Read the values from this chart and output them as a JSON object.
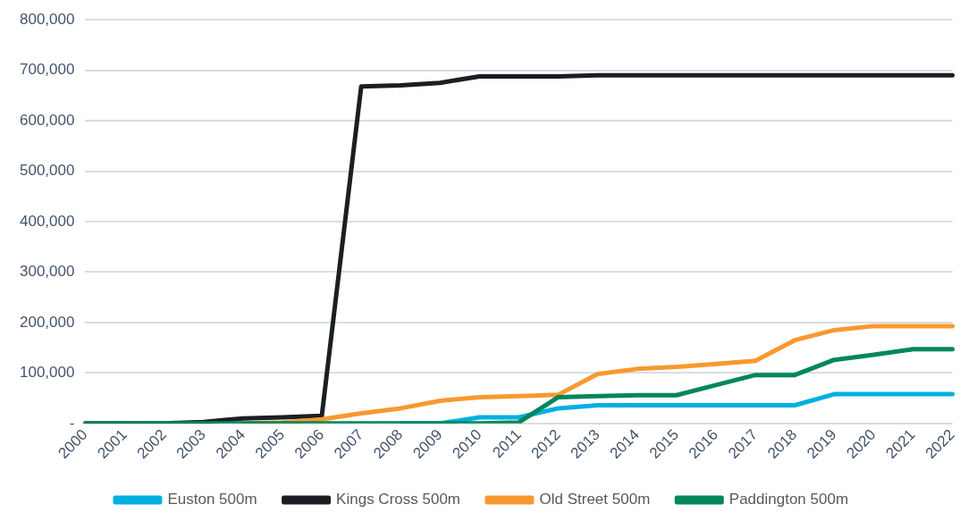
{
  "chart_data": {
    "type": "line",
    "categories": [
      "2000",
      "2001",
      "2002",
      "2003",
      "2004",
      "2005",
      "2006",
      "2007",
      "2008",
      "2009",
      "2010",
      "2011",
      "2012",
      "2013",
      "2014",
      "2015",
      "2016",
      "2017",
      "2018",
      "2019",
      "2020",
      "2021",
      "2022"
    ],
    "series": [
      {
        "name": "Euston 500m",
        "color": "#00b0e0",
        "values": [
          null,
          null,
          null,
          null,
          null,
          null,
          null,
          null,
          0,
          0,
          12000,
          12000,
          30000,
          36000,
          36000,
          36000,
          36000,
          36000,
          36000,
          58000,
          58000,
          58000,
          58000
        ]
      },
      {
        "name": "Kings Cross 500m",
        "color": "#1b1f24",
        "values": [
          0,
          0,
          0,
          3000,
          10000,
          12000,
          15000,
          668000,
          670000,
          675000,
          688000,
          688000,
          688000,
          690000,
          690000,
          690000,
          690000,
          690000,
          690000,
          690000,
          690000,
          690000,
          690000
        ]
      },
      {
        "name": "Old Street 500m",
        "color": "#f7992f",
        "values": [
          null,
          null,
          null,
          null,
          0,
          2000,
          8000,
          20000,
          30000,
          45000,
          52000,
          54000,
          57000,
          98000,
          108000,
          112000,
          118000,
          124000,
          165000,
          185000,
          193000,
          193000,
          193000
        ]
      },
      {
        "name": "Paddington 500m",
        "color": "#00875a",
        "values": [
          0,
          0,
          0,
          0,
          0,
          0,
          0,
          0,
          0,
          0,
          0,
          2000,
          52000,
          54000,
          56000,
          56000,
          76000,
          96000,
          96000,
          126000,
          136000,
          147000,
          147000
        ]
      }
    ],
    "ylim": [
      0,
      800000
    ],
    "yticks": [
      {
        "value": 0,
        "label": "-"
      },
      {
        "value": 100000,
        "label": "100,000"
      },
      {
        "value": 200000,
        "label": "200,000"
      },
      {
        "value": 300000,
        "label": "300,000"
      },
      {
        "value": 400000,
        "label": "400,000"
      },
      {
        "value": 500000,
        "label": "500,000"
      },
      {
        "value": 600000,
        "label": "600,000"
      },
      {
        "value": 700000,
        "label": "700,000"
      },
      {
        "value": 800000,
        "label": "800,000"
      }
    ],
    "grid": "y",
    "legend": "bottom",
    "marker": "none",
    "line_style": "solid"
  }
}
